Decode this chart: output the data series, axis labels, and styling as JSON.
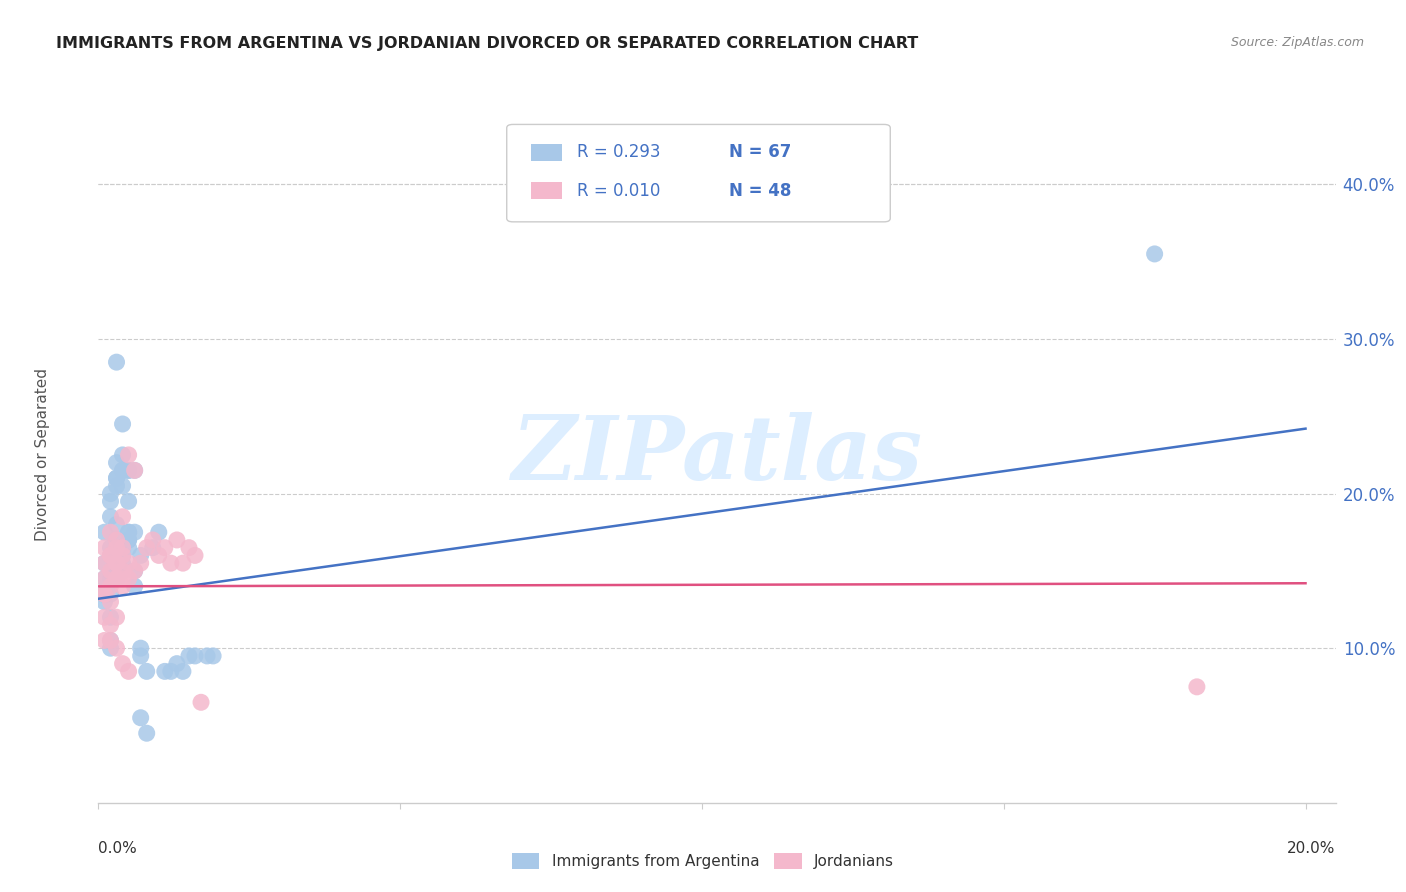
{
  "title": "IMMIGRANTS FROM ARGENTINA VS JORDANIAN DIVORCED OR SEPARATED CORRELATION CHART",
  "source": "Source: ZipAtlas.com",
  "ylabel": "Divorced or Separated",
  "legend_blue_R": "R = 0.293",
  "legend_blue_N": "N = 67",
  "legend_pink_R": "R = 0.010",
  "legend_pink_N": "N = 48",
  "legend_blue_label": "Immigrants from Argentina",
  "legend_pink_label": "Jordanians",
  "blue_color": "#a8c8e8",
  "pink_color": "#f4b8cc",
  "blue_line_color": "#4472c4",
  "pink_line_color": "#e05080",
  "legend_text_color": "#4472c4",
  "watermark_color": "#ddeeff",
  "blue_scatter_x": [
    0.001,
    0.002,
    0.003,
    0.001,
    0.002,
    0.003,
    0.004,
    0.002,
    0.003,
    0.004,
    0.005,
    0.001,
    0.002,
    0.003,
    0.002,
    0.003,
    0.004,
    0.003,
    0.004,
    0.005,
    0.002,
    0.003,
    0.004,
    0.005,
    0.006,
    0.003,
    0.004,
    0.005,
    0.004,
    0.005,
    0.006,
    0.007,
    0.001,
    0.002,
    0.002,
    0.003,
    0.003,
    0.004,
    0.004,
    0.005,
    0.005,
    0.006,
    0.006,
    0.007,
    0.007,
    0.008,
    0.009,
    0.01,
    0.011,
    0.012,
    0.013,
    0.014,
    0.007,
    0.008,
    0.015,
    0.016,
    0.001,
    0.001,
    0.001,
    0.002,
    0.002,
    0.003,
    0.004,
    0.005,
    0.018,
    0.019,
    0.175
  ],
  "blue_scatter_y": [
    0.135,
    0.145,
    0.145,
    0.155,
    0.16,
    0.15,
    0.16,
    0.165,
    0.17,
    0.165,
    0.17,
    0.175,
    0.185,
    0.18,
    0.195,
    0.205,
    0.215,
    0.21,
    0.225,
    0.215,
    0.2,
    0.21,
    0.205,
    0.195,
    0.215,
    0.22,
    0.215,
    0.215,
    0.165,
    0.17,
    0.175,
    0.16,
    0.13,
    0.12,
    0.105,
    0.145,
    0.145,
    0.15,
    0.155,
    0.165,
    0.175,
    0.14,
    0.15,
    0.1,
    0.095,
    0.085,
    0.165,
    0.175,
    0.085,
    0.085,
    0.09,
    0.085,
    0.055,
    0.045,
    0.095,
    0.095,
    0.135,
    0.135,
    0.145,
    0.135,
    0.1,
    0.285,
    0.245,
    0.175,
    0.095,
    0.095,
    0.355
  ],
  "pink_scatter_x": [
    0.001,
    0.002,
    0.001,
    0.002,
    0.003,
    0.001,
    0.002,
    0.003,
    0.004,
    0.001,
    0.002,
    0.003,
    0.004,
    0.002,
    0.003,
    0.004,
    0.005,
    0.001,
    0.002,
    0.003,
    0.004,
    0.005,
    0.001,
    0.002,
    0.003,
    0.004,
    0.005,
    0.006,
    0.001,
    0.002,
    0.003,
    0.004,
    0.003,
    0.004,
    0.005,
    0.006,
    0.007,
    0.008,
    0.009,
    0.01,
    0.011,
    0.012,
    0.013,
    0.014,
    0.015,
    0.016,
    0.017,
    0.182
  ],
  "pink_scatter_y": [
    0.135,
    0.13,
    0.12,
    0.115,
    0.12,
    0.135,
    0.14,
    0.145,
    0.14,
    0.145,
    0.15,
    0.155,
    0.145,
    0.16,
    0.155,
    0.15,
    0.155,
    0.105,
    0.105,
    0.1,
    0.09,
    0.085,
    0.165,
    0.175,
    0.17,
    0.165,
    0.225,
    0.215,
    0.155,
    0.16,
    0.165,
    0.16,
    0.145,
    0.185,
    0.145,
    0.15,
    0.155,
    0.165,
    0.17,
    0.16,
    0.165,
    0.155,
    0.17,
    0.155,
    0.165,
    0.16,
    0.065,
    0.075
  ],
  "blue_line_x": [
    0.0,
    0.2
  ],
  "blue_line_y": [
    0.132,
    0.242
  ],
  "pink_line_x": [
    0.0,
    0.2
  ],
  "pink_line_y": [
    0.14,
    0.142
  ],
  "xlim": [
    0.0,
    0.205
  ],
  "ylim": [
    0.0,
    0.45
  ],
  "yticks": [
    0.1,
    0.2,
    0.3,
    0.4
  ],
  "ytick_labels": [
    "10.0%",
    "20.0%",
    "30.0%",
    "40.0%"
  ],
  "xtick_positions": [
    0.0,
    0.05,
    0.1,
    0.15,
    0.2
  ],
  "background_color": "#ffffff",
  "grid_color": "#cccccc",
  "axis_color": "#cccccc"
}
